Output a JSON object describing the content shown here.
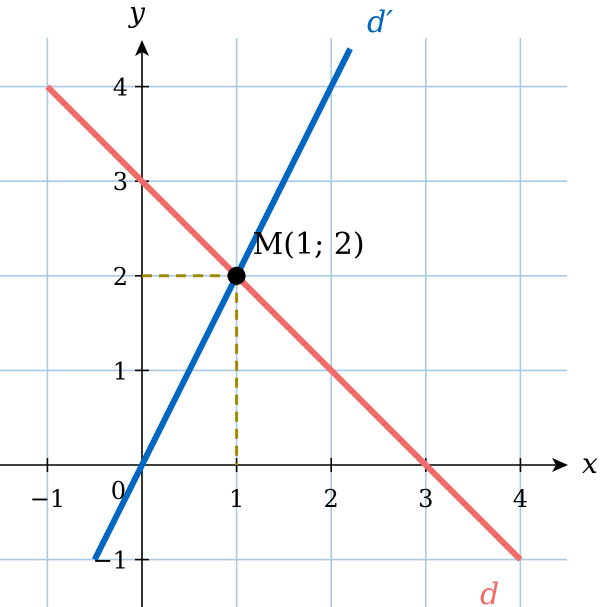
{
  "chart_data": {
    "type": "line",
    "title": "",
    "xlabel": "x",
    "ylabel": "y",
    "xlim": [
      -1.5,
      4.5
    ],
    "ylim": [
      -1.5,
      4.5
    ],
    "grid": true,
    "x_ticks": [
      {
        "value": -1,
        "label": "−1"
      },
      {
        "value": 1,
        "label": "1"
      },
      {
        "value": 2,
        "label": "2"
      },
      {
        "value": 3,
        "label": "3"
      },
      {
        "value": 4,
        "label": "4"
      }
    ],
    "y_ticks": [
      {
        "value": -1,
        "label": "−1"
      },
      {
        "value": 1,
        "label": "1"
      },
      {
        "value": 2,
        "label": "2"
      },
      {
        "value": 3,
        "label": "3"
      },
      {
        "value": 4,
        "label": "4"
      }
    ],
    "origin_label": "0",
    "series": [
      {
        "name": "d",
        "label": "d",
        "color": "#f26b6b",
        "x": [
          -1,
          4
        ],
        "y": [
          4,
          -1
        ]
      },
      {
        "name": "d′",
        "label": "d′",
        "color": "#0066bf",
        "x": [
          -0.5,
          2.2
        ],
        "y": [
          -1,
          4.4
        ]
      }
    ],
    "point": {
      "label": "M(1; 2)",
      "x": 1,
      "y": 2,
      "color": "#000000"
    },
    "guides": {
      "color": "#a08a00",
      "x_label": "1",
      "y_label": "2"
    },
    "colors": {
      "grid": "#a9c9e6",
      "axis": "#000000"
    }
  }
}
